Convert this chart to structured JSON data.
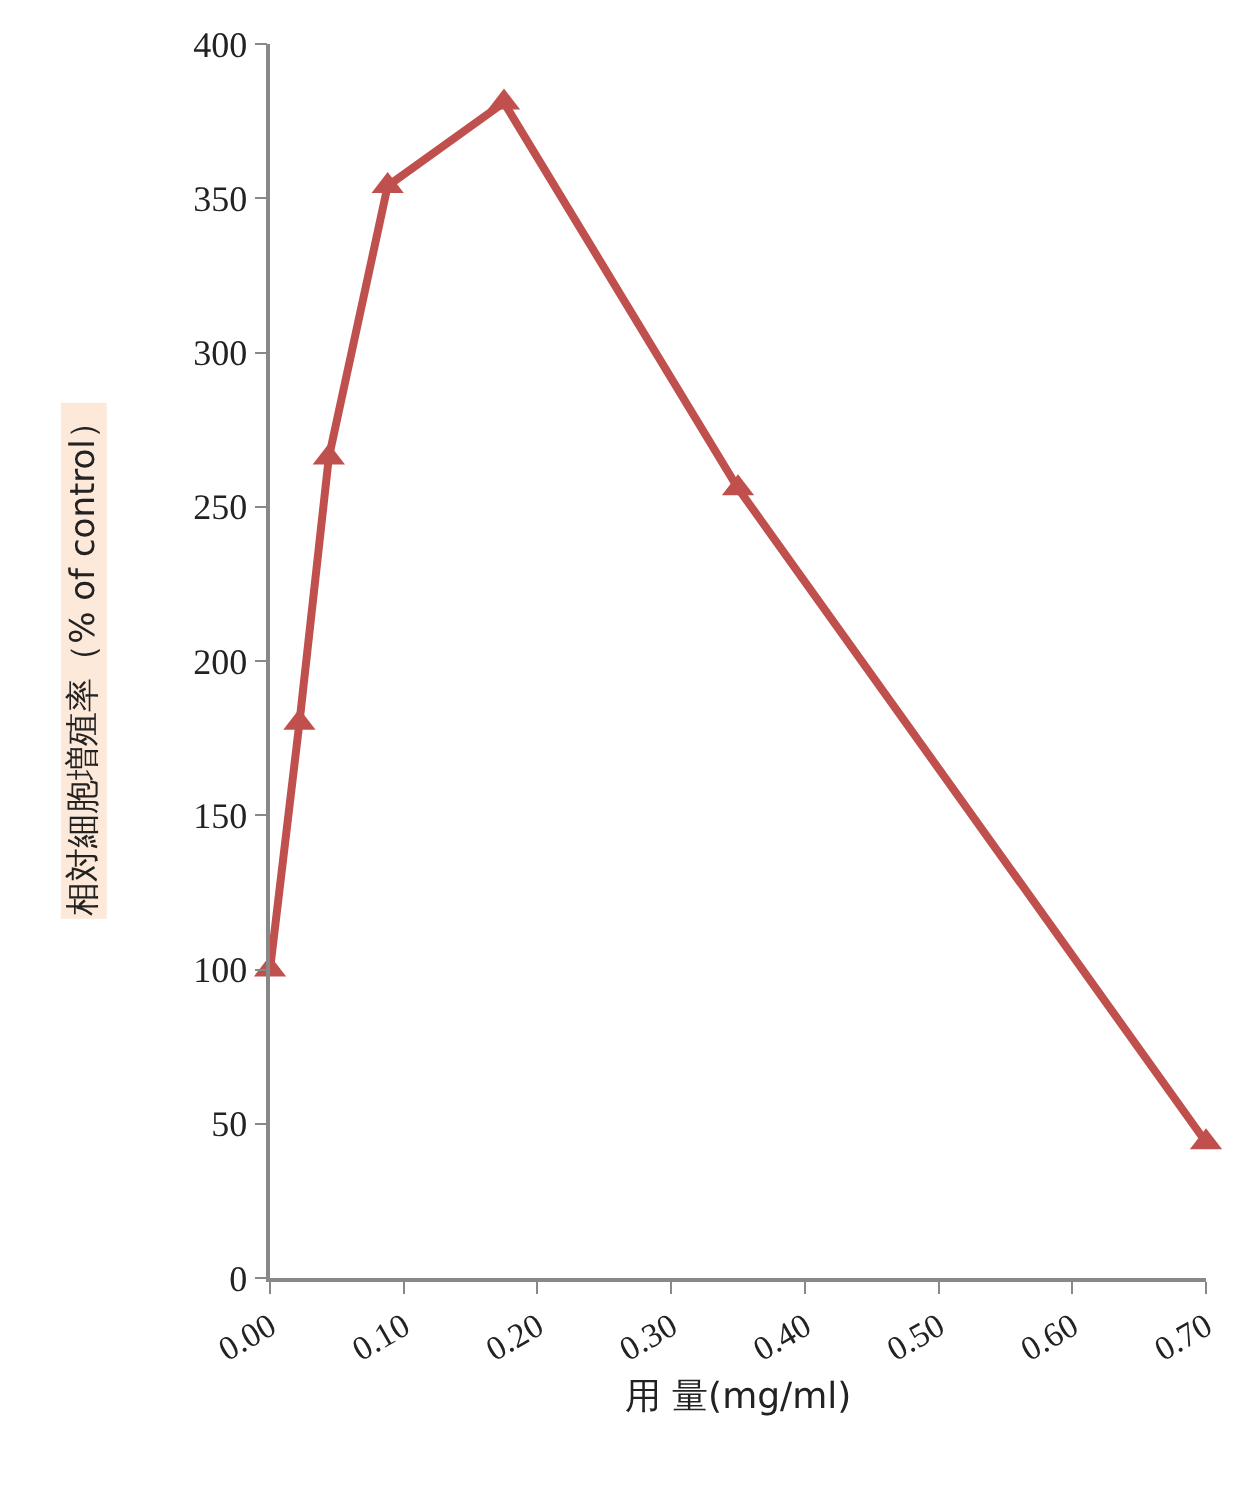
{
  "chart_data": {
    "type": "line",
    "xlabel": "用 量(mg/ml)",
    "ylabel": "相対細胞増殖率（% of control）",
    "x": [
      0,
      0.022,
      0.044,
      0.088,
      0.175,
      0.35,
      0.7
    ],
    "series": [
      {
        "color": "#c0504d",
        "values": [
          100,
          180,
          266,
          354,
          381,
          256,
          44
        ]
      }
    ],
    "xlim": [
      0,
      0.7
    ],
    "xticks": [
      {
        "value": 0,
        "label": "0.00"
      },
      {
        "value": 0.1,
        "label": "0.10"
      },
      {
        "value": 0.2,
        "label": "0.20"
      },
      {
        "value": 0.3,
        "label": "0.30"
      },
      {
        "value": 0.4,
        "label": "0.40"
      },
      {
        "value": 0.5,
        "label": "0.50"
      },
      {
        "value": 0.6,
        "label": "0.60"
      },
      {
        "value": 0.7,
        "label": "0.70"
      }
    ],
    "ylim": [
      0,
      400
    ],
    "yticks": [
      0,
      50,
      100,
      150,
      200,
      250,
      300,
      350,
      400
    ],
    "legend": false,
    "marker": "triangle",
    "line_style": "solid"
  }
}
